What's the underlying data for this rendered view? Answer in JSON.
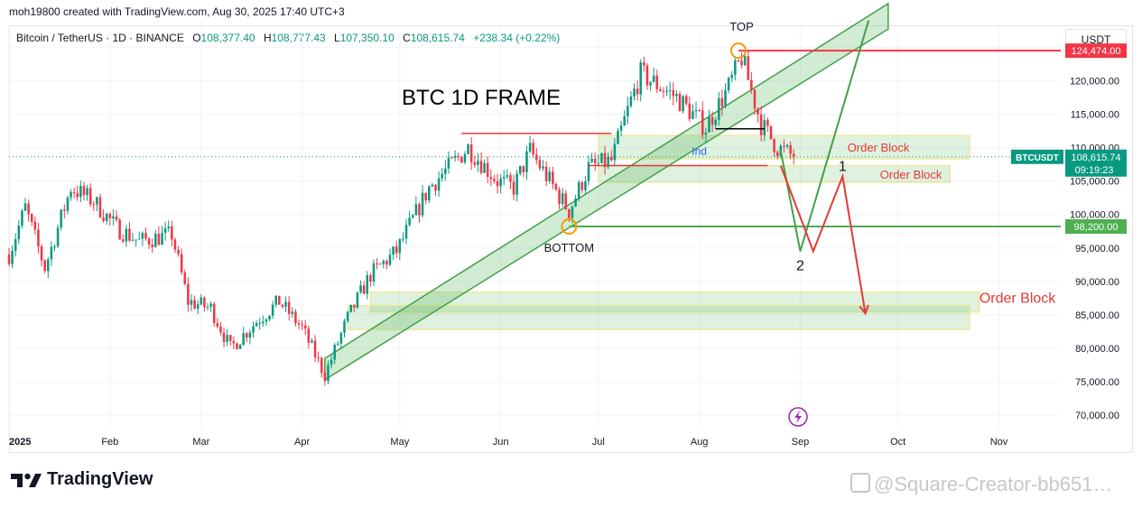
{
  "header": {
    "created_by": "moh19800 created with TradingView.com, Aug 30, 2025 17:40 UTC+3",
    "symbol": "Bitcoin / TetherUS · 1D · BINANCE",
    "open_label": "O",
    "open": "108,377.40",
    "high_label": "H",
    "high": "108,777.43",
    "low_label": "L",
    "low": "107,350.10",
    "close_label": "C",
    "close": "108,615.74",
    "change": "+238.34 (+0.22%)"
  },
  "unit_button": "USDT",
  "brand": "TradingView",
  "watermark": "@Square-Creator-bb651…",
  "colors": {
    "up": "#089981",
    "down": "#f23645",
    "zone_green": "#4caf50",
    "zone_yellow": "#f0e68c",
    "annot_red": "#e53935",
    "annot_green": "#43a047"
  },
  "chart_data": {
    "type": "candlestick",
    "title": "BTC 1D FRAME",
    "y_axis": {
      "min": 68000,
      "max": 128000,
      "ticks": [
        70000,
        75000,
        80000,
        85000,
        90000,
        95000,
        100000,
        105000,
        110000,
        115000,
        120000,
        125000
      ],
      "tick_labels": [
        "70,000.00",
        "75,000.00",
        "80,000.00",
        "85,000.00",
        "90,000.00",
        "95,000.00",
        "100,000.00",
        "105,000.00",
        "110,000.00",
        "115,000.00",
        "120,000.00",
        "125,000.00"
      ]
    },
    "x_axis": {
      "start": "2025-01-01",
      "end": "2025-11-20",
      "ticks": [
        {
          "date": "2025-01-01",
          "label": "2025"
        },
        {
          "date": "2025-02-01",
          "label": "Feb"
        },
        {
          "date": "2025-03-01",
          "label": "Mar"
        },
        {
          "date": "2025-04-01",
          "label": "Apr"
        },
        {
          "date": "2025-05-01",
          "label": "May"
        },
        {
          "date": "2025-06-01",
          "label": "Jun"
        },
        {
          "date": "2025-07-01",
          "label": "Jul"
        },
        {
          "date": "2025-08-01",
          "label": "Aug"
        },
        {
          "date": "2025-09-01",
          "label": "Sep"
        },
        {
          "date": "2025-10-01",
          "label": "Oct"
        },
        {
          "date": "2025-11-01",
          "label": "Nov"
        }
      ]
    },
    "price_path": [
      [
        "2025-01-01",
        94000
      ],
      [
        "2025-01-06",
        101000
      ],
      [
        "2025-01-12",
        92000
      ],
      [
        "2025-01-20",
        104000
      ],
      [
        "2025-01-27",
        102000
      ],
      [
        "2025-02-03",
        98000
      ],
      [
        "2025-02-10",
        96000
      ],
      [
        "2025-02-20",
        97000
      ],
      [
        "2025-02-25",
        87000
      ],
      [
        "2025-03-04",
        86000
      ],
      [
        "2025-03-10",
        80000
      ],
      [
        "2025-03-18",
        84000
      ],
      [
        "2025-03-25",
        87000
      ],
      [
        "2025-04-01",
        83000
      ],
      [
        "2025-04-08",
        76000
      ],
      [
        "2025-04-15",
        84500
      ],
      [
        "2025-04-22",
        91000
      ],
      [
        "2025-04-30",
        94500
      ],
      [
        "2025-05-10",
        104000
      ],
      [
        "2025-05-22",
        110000
      ],
      [
        "2025-05-31",
        105000
      ],
      [
        "2025-06-05",
        104000
      ],
      [
        "2025-06-10",
        109500
      ],
      [
        "2025-06-22",
        100500
      ],
      [
        "2025-06-28",
        107000
      ],
      [
        "2025-07-05",
        108000
      ],
      [
        "2025-07-11",
        117000
      ],
      [
        "2025-07-14",
        121000
      ],
      [
        "2025-07-25",
        117500
      ],
      [
        "2025-08-03",
        113000
      ],
      [
        "2025-08-10",
        119000
      ],
      [
        "2025-08-14",
        123500
      ],
      [
        "2025-08-20",
        113500
      ],
      [
        "2025-08-25",
        110000
      ],
      [
        "2025-08-30",
        108615
      ]
    ],
    "series": [],
    "levels": [
      {
        "price": 124474,
        "label": "124,474.00",
        "color": "#f23645",
        "from": "2025-08-13"
      },
      {
        "price": 98200,
        "label": "98,200.00",
        "color": "#4caf50",
        "from": "2025-06-22"
      },
      {
        "price": 108615.74,
        "label": "108,615.74",
        "tag": "BTCUSDT",
        "countdown": "09:19:23",
        "color": "#089981"
      }
    ],
    "zones": [
      {
        "label": "Order Block",
        "from": "2025-07-01",
        "to": "2025-10-23",
        "low": 108300,
        "high": 111800,
        "label_at": "2025-09-25"
      },
      {
        "label": "Order Block",
        "from": "2025-07-01",
        "to": "2025-10-17",
        "low": 104800,
        "high": 107300,
        "label_at": "2025-10-05"
      },
      {
        "label": "Order Block",
        "from": "2025-04-22",
        "to": "2025-10-26",
        "low": 85400,
        "high": 88400,
        "label_at": "2025-10-26"
      },
      {
        "label": "",
        "from": "2025-04-15",
        "to": "2025-10-23",
        "low": 82800,
        "high": 86400
      }
    ],
    "channel": {
      "from": "2025-04-08",
      "from_low": 75300,
      "from_high": 78500,
      "to": "2025-09-28",
      "to_low": 127700,
      "to_high": 131500
    },
    "annotations": [
      {
        "text": "TOP",
        "date": "2025-08-14",
        "price": 124474
      },
      {
        "text": "BOTTOM",
        "date": "2025-06-22",
        "price": 98200
      },
      {
        "text": "1",
        "date": "2025-09-14",
        "price": 105700
      },
      {
        "text": "2",
        "date": "2025-09-01",
        "price": 94600
      },
      {
        "text": "Ind",
        "date": "2025-08-01",
        "price": 108900
      }
    ],
    "projection_red": [
      [
        "2025-08-26",
        107300
      ],
      [
        "2025-09-05",
        94500
      ],
      [
        "2025-09-14",
        105700
      ],
      [
        "2025-09-21",
        85200
      ]
    ],
    "projection_green": [
      [
        "2025-08-26",
        109500
      ],
      [
        "2025-09-01",
        94500
      ],
      [
        "2025-09-22",
        129000
      ]
    ],
    "black_line": {
      "from": "2025-08-06",
      "to": "2025-08-21",
      "price": 112800
    },
    "red_level_lines": [
      {
        "from": "2025-05-20",
        "to": "2025-07-05",
        "price": 112100
      },
      {
        "from": "2025-06-28",
        "to": "2025-08-22",
        "price": 107300
      }
    ]
  }
}
